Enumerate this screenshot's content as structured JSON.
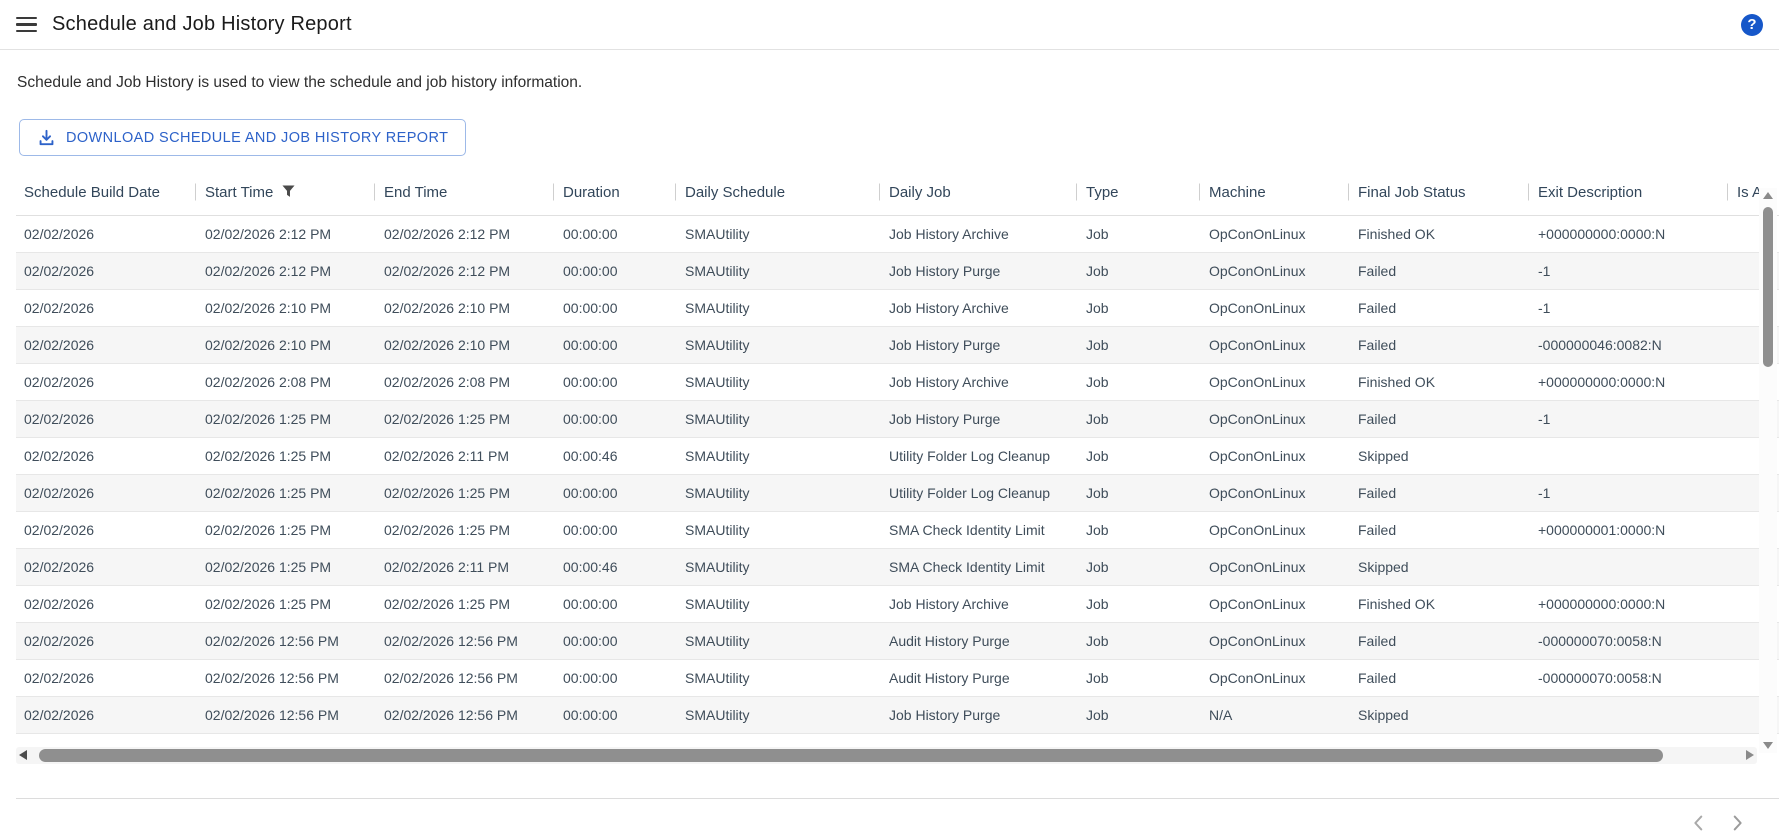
{
  "header": {
    "title": "Schedule and Job History Report"
  },
  "description": "Schedule and Job History is used to view the schedule and job history information.",
  "toolbar": {
    "download_label": "DOWNLOAD SCHEDULE AND JOB HISTORY REPORT"
  },
  "table": {
    "columns": [
      {
        "label": "Schedule Build Date"
      },
      {
        "label": "Start Time",
        "filter": true
      },
      {
        "label": "End Time"
      },
      {
        "label": "Duration"
      },
      {
        "label": "Daily Schedule"
      },
      {
        "label": "Daily Job"
      },
      {
        "label": "Type"
      },
      {
        "label": "Machine"
      },
      {
        "label": "Final Job Status"
      },
      {
        "label": "Exit Description"
      },
      {
        "label": "Is Arc"
      }
    ],
    "rows": [
      [
        "02/02/2026",
        "02/02/2026 2:12 PM",
        "02/02/2026 2:12 PM",
        "00:00:00",
        "SMAUtility",
        "Job History Archive",
        "Job",
        "OpConOnLinux",
        "Finished OK",
        "+000000000:0000:N",
        ""
      ],
      [
        "02/02/2026",
        "02/02/2026 2:12 PM",
        "02/02/2026 2:12 PM",
        "00:00:00",
        "SMAUtility",
        "Job History Purge",
        "Job",
        "OpConOnLinux",
        "Failed",
        "-1",
        ""
      ],
      [
        "02/02/2026",
        "02/02/2026 2:10 PM",
        "02/02/2026 2:10 PM",
        "00:00:00",
        "SMAUtility",
        "Job History Archive",
        "Job",
        "OpConOnLinux",
        "Failed",
        "-1",
        ""
      ],
      [
        "02/02/2026",
        "02/02/2026 2:10 PM",
        "02/02/2026 2:10 PM",
        "00:00:00",
        "SMAUtility",
        "Job History Purge",
        "Job",
        "OpConOnLinux",
        "Failed",
        "-000000046:0082:N",
        ""
      ],
      [
        "02/02/2026",
        "02/02/2026 2:08 PM",
        "02/02/2026 2:08 PM",
        "00:00:00",
        "SMAUtility",
        "Job History Archive",
        "Job",
        "OpConOnLinux",
        "Finished OK",
        "+000000000:0000:N",
        ""
      ],
      [
        "02/02/2026",
        "02/02/2026 1:25 PM",
        "02/02/2026 1:25 PM",
        "00:00:00",
        "SMAUtility",
        "Job History Purge",
        "Job",
        "OpConOnLinux",
        "Failed",
        "-1",
        ""
      ],
      [
        "02/02/2026",
        "02/02/2026 1:25 PM",
        "02/02/2026 2:11 PM",
        "00:00:46",
        "SMAUtility",
        "Utility Folder Log Cleanup",
        "Job",
        "OpConOnLinux",
        "Skipped",
        "",
        ""
      ],
      [
        "02/02/2026",
        "02/02/2026 1:25 PM",
        "02/02/2026 1:25 PM",
        "00:00:00",
        "SMAUtility",
        "Utility Folder Log Cleanup",
        "Job",
        "OpConOnLinux",
        "Failed",
        "-1",
        ""
      ],
      [
        "02/02/2026",
        "02/02/2026 1:25 PM",
        "02/02/2026 1:25 PM",
        "00:00:00",
        "SMAUtility",
        "SMA Check Identity Limit",
        "Job",
        "OpConOnLinux",
        "Failed",
        "+000000001:0000:N",
        ""
      ],
      [
        "02/02/2026",
        "02/02/2026 1:25 PM",
        "02/02/2026 2:11 PM",
        "00:00:46",
        "SMAUtility",
        "SMA Check Identity Limit",
        "Job",
        "OpConOnLinux",
        "Skipped",
        "",
        ""
      ],
      [
        "02/02/2026",
        "02/02/2026 1:25 PM",
        "02/02/2026 1:25 PM",
        "00:00:00",
        "SMAUtility",
        "Job History Archive",
        "Job",
        "OpConOnLinux",
        "Finished OK",
        "+000000000:0000:N",
        ""
      ],
      [
        "02/02/2026",
        "02/02/2026 12:56 PM",
        "02/02/2026 12:56 PM",
        "00:00:00",
        "SMAUtility",
        "Audit History Purge",
        "Job",
        "OpConOnLinux",
        "Failed",
        "-000000070:0058:N",
        ""
      ],
      [
        "02/02/2026",
        "02/02/2026 12:56 PM",
        "02/02/2026 12:56 PM",
        "00:00:00",
        "SMAUtility",
        "Audit History Purge",
        "Job",
        "OpConOnLinux",
        "Failed",
        "-000000070:0058:N",
        ""
      ],
      [
        "02/02/2026",
        "02/02/2026 12:56 PM",
        "02/02/2026 12:56 PM",
        "00:00:00",
        "SMAUtility",
        "Job History Purge",
        "Job",
        "N/A",
        "Skipped",
        "",
        ""
      ]
    ]
  },
  "icons": {
    "menu": "hamburger-icon",
    "help": "question-circle-icon",
    "download": "download-icon",
    "filter": "filter-funnel-icon",
    "scroll_up": "caret-up-icon",
    "scroll_down": "caret-down-icon",
    "scroll_left": "caret-left-icon",
    "scroll_right": "caret-right-icon",
    "prev": "chevron-left-icon",
    "next": "chevron-right-icon"
  },
  "colors": {
    "accent": "#2d62c9",
    "button_border": "#9db9e8",
    "help_badge": "#1657c9",
    "header_text": "#32465a",
    "body_text": "#3f4d5a",
    "row_alt": "#f6f6f6",
    "divider": "#e4e4e4",
    "scroll_thumb": "#8f8f8f"
  }
}
